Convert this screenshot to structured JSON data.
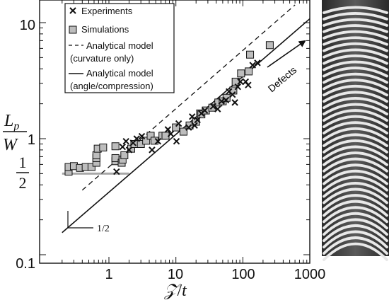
{
  "chart_data": {
    "type": "scatter",
    "x_scale": "log",
    "y_scale": "log",
    "xlim": [
      0.2,
      1000
    ],
    "ylim": [
      0.1,
      15
    ],
    "xlabel": {
      "main": "𝒵",
      "sep": "/",
      "sub": "t"
    },
    "ylabel": {
      "num_main": "L",
      "num_sub": "p",
      "den": "W"
    },
    "x_ticks": [
      {
        "value": 1,
        "label": "1"
      },
      {
        "value": 10,
        "label": "10"
      },
      {
        "value": 100,
        "label": "100"
      },
      {
        "value": 1000,
        "label": "1000"
      }
    ],
    "y_ticks": [
      {
        "value": 0.1,
        "label": "0.1"
      },
      {
        "value": 1,
        "label": "1"
      },
      {
        "value": 10,
        "label": "10"
      }
    ],
    "y_special_tick": {
      "value": 0.5,
      "numerator": "1",
      "denominator": "2"
    },
    "legend": {
      "position": "top-left",
      "entries": [
        {
          "symbol": "cross",
          "label": "Experiments"
        },
        {
          "symbol": "square",
          "label": "Simulations"
        },
        {
          "symbol": "dashed",
          "label": "Analytical model"
        },
        {
          "symbol": "none",
          "label": "(curvature only)"
        },
        {
          "symbol": "solid",
          "label": "Analytical model"
        },
        {
          "symbol": "none",
          "label": "(angle/compression)"
        }
      ]
    },
    "annotations": {
      "arrow_label": "Defects",
      "slope_label": "1/2"
    },
    "lines": [
      {
        "style": "solid",
        "from": [
          0.2,
          0.155
        ],
        "to": [
          1000,
          10.8
        ]
      },
      {
        "style": "dashed",
        "from": [
          0.4,
          0.36
        ],
        "to": [
          600,
          14.2
        ]
      },
      {
        "style": "gray-plateau",
        "from": [
          0.2,
          0.5
        ],
        "to": [
          2.0,
          0.5
        ]
      }
    ],
    "series": [
      {
        "name": "Experiments",
        "marker": "cross",
        "points": [
          [
            1.3,
            0.52
          ],
          [
            1.6,
            0.85
          ],
          [
            1.8,
            0.95
          ],
          [
            2.0,
            0.8
          ],
          [
            2.3,
            0.92
          ],
          [
            2.6,
            1.0
          ],
          [
            3.1,
            1.05
          ],
          [
            4.4,
            0.8
          ],
          [
            5.4,
            0.95
          ],
          [
            7.6,
            1.2
          ],
          [
            8.4,
            1.1
          ],
          [
            10.2,
            0.95
          ],
          [
            11.0,
            1.35
          ],
          [
            15.5,
            1.25
          ],
          [
            17.5,
            1.55
          ],
          [
            19.0,
            1.3
          ],
          [
            21.0,
            1.45
          ],
          [
            24.0,
            1.65
          ],
          [
            27.0,
            1.75
          ],
          [
            36.0,
            1.9
          ],
          [
            42.0,
            1.8
          ],
          [
            48.0,
            2.1
          ],
          [
            56.0,
            2.15
          ],
          [
            62.0,
            2.55
          ],
          [
            70.0,
            2.4
          ],
          [
            76.0,
            2.05
          ],
          [
            84.0,
            2.8
          ],
          [
            92.0,
            3.1
          ],
          [
            110.0,
            3.1
          ],
          [
            120.0,
            2.9
          ],
          [
            140.0,
            4.3
          ],
          [
            165.0,
            4.5
          ]
        ]
      },
      {
        "name": "Simulations",
        "marker": "square",
        "points": [
          [
            0.25,
            0.52
          ],
          [
            0.25,
            0.57
          ],
          [
            0.3,
            0.58
          ],
          [
            0.37,
            0.56
          ],
          [
            0.45,
            0.57
          ],
          [
            0.55,
            0.57
          ],
          [
            0.65,
            0.62
          ],
          [
            0.65,
            0.68
          ],
          [
            0.65,
            0.72
          ],
          [
            0.68,
            0.82
          ],
          [
            0.82,
            0.84
          ],
          [
            1.25,
            0.64
          ],
          [
            1.25,
            0.68
          ],
          [
            1.25,
            0.86
          ],
          [
            1.55,
            0.62
          ],
          [
            1.6,
            0.66
          ],
          [
            1.7,
            0.72
          ],
          [
            2.15,
            0.82
          ],
          [
            2.4,
            0.9
          ],
          [
            3.0,
            0.9
          ],
          [
            3.6,
            0.96
          ],
          [
            4.2,
            1.06
          ],
          [
            4.8,
            0.96
          ],
          [
            6.3,
            1.06
          ],
          [
            7.0,
            1.06
          ],
          [
            10.0,
            1.25
          ],
          [
            13.0,
            1.15
          ],
          [
            16.0,
            1.3
          ],
          [
            20.0,
            1.4
          ],
          [
            23.0,
            1.65
          ],
          [
            24.0,
            1.62
          ],
          [
            28.0,
            1.75
          ],
          [
            35.0,
            1.85
          ],
          [
            43.0,
            2.05
          ],
          [
            50.0,
            2.1
          ],
          [
            57.0,
            2.25
          ],
          [
            72.0,
            2.6
          ],
          [
            78.0,
            3.1
          ],
          [
            94.0,
            3.65
          ],
          [
            122.0,
            3.8
          ],
          [
            128.0,
            5.3
          ],
          [
            252.0,
            6.4
          ]
        ]
      }
    ]
  },
  "photo": {
    "stripe_count": 40
  }
}
